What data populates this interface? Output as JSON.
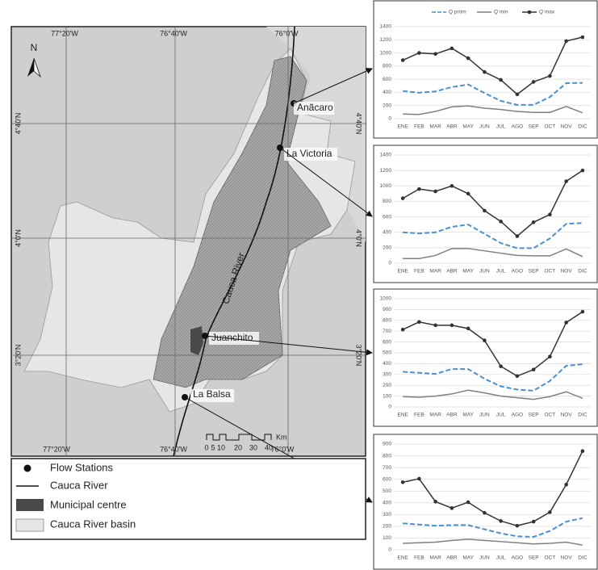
{
  "map": {
    "north": "N",
    "lon_labels": [
      "77°20'W",
      "76°40'W",
      "76°0'W"
    ],
    "lat_labels": [
      "4°40'N",
      "4°0'N",
      "3°20'N"
    ],
    "stations": [
      "Anãcaro",
      "La Victoria",
      "Juanchito",
      "La Balsa"
    ],
    "river_label": "Cauca River",
    "scale": {
      "ticks": [
        "0",
        "5",
        "10",
        "20",
        "30",
        "40"
      ],
      "unit": "Km"
    },
    "legend": [
      "Flow Stations",
      "Cauca River",
      "Municipal centre",
      "Cauca River basin"
    ]
  },
  "chart_data": [
    {
      "type": "line",
      "categories": [
        "ENE",
        "FEB",
        "MAR",
        "ABR",
        "MAY",
        "JUN",
        "JUL",
        "AGO",
        "SEP",
        "OCT",
        "NOV",
        "DIC"
      ],
      "ylim": [
        0,
        1400
      ],
      "yticks": [
        0,
        200,
        400,
        600,
        800,
        1000,
        1200,
        1400
      ],
      "grid": true,
      "legend": true,
      "series": [
        {
          "name": "Q prom",
          "color": "#4a8fd1",
          "dashed": true,
          "markers": false,
          "values": [
            420,
            395,
            415,
            480,
            520,
            390,
            270,
            210,
            210,
            330,
            540,
            545
          ]
        },
        {
          "name": "Q min",
          "color": "#7f7f7f",
          "dashed": false,
          "markers": false,
          "values": [
            70,
            65,
            110,
            180,
            195,
            160,
            140,
            110,
            95,
            95,
            185,
            90
          ]
        },
        {
          "name": "Q max",
          "color": "#333333",
          "dashed": false,
          "markers": true,
          "values": [
            890,
            1000,
            985,
            1070,
            920,
            710,
            590,
            370,
            560,
            650,
            1180,
            1240
          ]
        }
      ]
    },
    {
      "type": "line",
      "categories": [
        "ENE",
        "FEB",
        "MAR",
        "ABR",
        "MAY",
        "JUN",
        "JUL",
        "AGO",
        "SEP",
        "OCT",
        "NOV",
        "DIC"
      ],
      "ylim": [
        0,
        1400
      ],
      "yticks": [
        0,
        200,
        400,
        600,
        800,
        1000,
        1200,
        1400
      ],
      "grid": true,
      "legend": false,
      "series": [
        {
          "color": "#4a8fd1",
          "dashed": true,
          "markers": false,
          "values": [
            400,
            385,
            400,
            470,
            500,
            380,
            260,
            195,
            195,
            320,
            510,
            520
          ]
        },
        {
          "color": "#7f7f7f",
          "dashed": false,
          "markers": false,
          "values": [
            60,
            60,
            100,
            190,
            190,
            160,
            130,
            100,
            95,
            95,
            185,
            85
          ]
        },
        {
          "color": "#333333",
          "dashed": false,
          "markers": true,
          "values": [
            840,
            960,
            930,
            1000,
            900,
            680,
            540,
            350,
            530,
            630,
            1060,
            1200
          ]
        }
      ]
    },
    {
      "type": "line",
      "categories": [
        "ENE",
        "FEB",
        "MAR",
        "ABR",
        "MAY",
        "JUN",
        "JUL",
        "AGO",
        "SEP",
        "OCT",
        "NOV",
        "DIC"
      ],
      "ylim": [
        0,
        1000
      ],
      "yticks": [
        0,
        100,
        200,
        300,
        400,
        500,
        600,
        700,
        800,
        900,
        1000
      ],
      "grid": true,
      "legend": false,
      "series": [
        {
          "color": "#4a8fd1",
          "dashed": true,
          "markers": false,
          "values": [
            325,
            315,
            305,
            350,
            350,
            260,
            190,
            160,
            150,
            240,
            380,
            395
          ]
        },
        {
          "color": "#7f7f7f",
          "dashed": false,
          "markers": false,
          "values": [
            95,
            90,
            100,
            120,
            155,
            130,
            100,
            85,
            70,
            95,
            140,
            80
          ]
        },
        {
          "color": "#333333",
          "dashed": false,
          "markers": true,
          "values": [
            715,
            785,
            755,
            755,
            725,
            615,
            375,
            285,
            345,
            465,
            780,
            880
          ]
        }
      ]
    },
    {
      "type": "line",
      "categories": [
        "ENE",
        "FEB",
        "MAR",
        "ABR",
        "MAY",
        "JUN",
        "JUL",
        "AGO",
        "SEP",
        "OCT",
        "NOV",
        "DIC"
      ],
      "ylim": [
        0,
        900
      ],
      "yticks": [
        0,
        100,
        200,
        300,
        400,
        500,
        600,
        700,
        800,
        900
      ],
      "grid": true,
      "legend": false,
      "series": [
        {
          "color": "#4a8fd1",
          "dashed": true,
          "markers": false,
          "values": [
            225,
            215,
            205,
            210,
            210,
            175,
            140,
            115,
            110,
            160,
            240,
            270
          ]
        },
        {
          "color": "#7f7f7f",
          "dashed": false,
          "markers": false,
          "values": [
            55,
            60,
            65,
            80,
            90,
            80,
            70,
            60,
            50,
            55,
            65,
            40
          ]
        },
        {
          "color": "#333333",
          "dashed": false,
          "markers": true,
          "values": [
            575,
            605,
            410,
            355,
            405,
            315,
            245,
            205,
            240,
            320,
            555,
            840
          ]
        }
      ]
    }
  ]
}
